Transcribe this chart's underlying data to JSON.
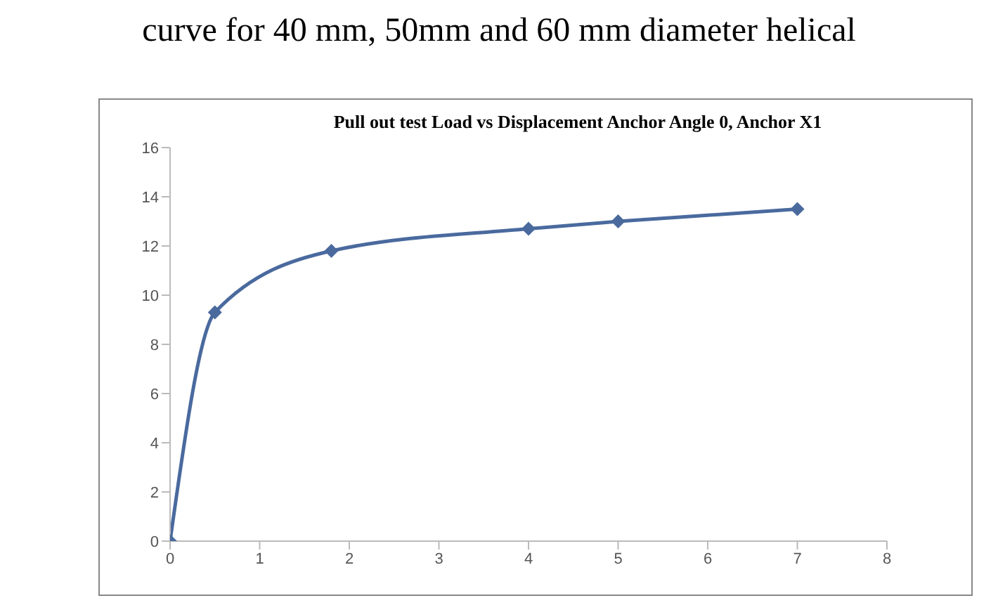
{
  "chart_data": {
    "type": "line",
    "title": "Pull out test Load vs Displacement Anchor Angle 0, Anchor X1",
    "annotations": [
      "curve for 40 mm, 50mm and 60 mm diameter helical"
    ],
    "x": [
      0,
      0.5,
      1.8,
      4,
      5,
      7
    ],
    "series": [
      {
        "color": "#4a6a9e",
        "values": [
          0,
          9.3,
          11.8,
          12.7,
          13.0,
          13.5
        ]
      }
    ],
    "xlim": [
      0,
      8
    ],
    "xticks": [
      0,
      1,
      2,
      3,
      4,
      5,
      6,
      7,
      8
    ],
    "ylim": [
      0,
      16
    ],
    "yticks": [
      0,
      2,
      4,
      6,
      8,
      10,
      12,
      14,
      16
    ],
    "grid": false,
    "legend": false,
    "marker": "diamond",
    "line_style": "solid"
  }
}
